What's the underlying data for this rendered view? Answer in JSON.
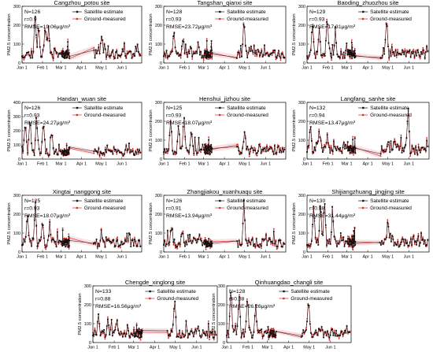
{
  "chart_data": [
    {
      "type": "line",
      "title": "Cangzhou_potou site",
      "ylabel": "PM2.5 concentration",
      "stats": [
        "N=126",
        "r=0.9",
        "RMSE=19.06μg/m³"
      ],
      "legend": [
        "Satellite estimate",
        "Ground-measured"
      ],
      "xticks": [
        "Jan 1",
        "Feb 1",
        "Mar 1",
        "Apr 1",
        "May 1",
        "Jun 1"
      ],
      "ylim": [
        0,
        300
      ],
      "yticks": [
        0,
        100,
        200,
        300
      ],
      "xlim_days": [
        0,
        181
      ],
      "n_points": 126,
      "seed": 11,
      "peaks": [
        [
          20,
          240
        ],
        [
          25,
          210
        ],
        [
          35,
          200
        ],
        [
          40,
          195
        ],
        [
          120,
          140
        ]
      ]
    },
    {
      "type": "line",
      "title": "Tangshan_qianxi site",
      "ylabel": "PM2.5 concentration",
      "stats": [
        "N=128",
        "r=0.93",
        "RMSE=23.72μg/m³"
      ],
      "legend": [
        "Satellite estimate",
        "Ground-measured"
      ],
      "xticks": [
        "Jan 1",
        "Feb 1",
        "Mar 1",
        "Apr 1",
        "May 1",
        "Jun 1"
      ],
      "ylim": [
        0,
        300
      ],
      "yticks": [
        0,
        100,
        200,
        300
      ],
      "xlim_days": [
        0,
        181
      ],
      "n_points": 128,
      "seed": 23,
      "peaks": [
        [
          15,
          180
        ],
        [
          28,
          120
        ],
        [
          40,
          90
        ],
        [
          119,
          230
        ],
        [
          140,
          80
        ]
      ]
    },
    {
      "type": "line",
      "title": "Baoding_zhuozhou site",
      "ylabel": "PM2.5 concentration",
      "stats": [
        "N=129",
        "r=0.93",
        "RMSE=17.31μg/m³"
      ],
      "legend": [
        "Satellite estimate",
        "Ground-measured"
      ],
      "xticks": [
        "Jan 1",
        "Feb 1",
        "Mar 1",
        "Apr 1",
        "May 1",
        "Jun 1"
      ],
      "ylim": [
        0,
        300
      ],
      "yticks": [
        0,
        100,
        200,
        300
      ],
      "xlim_days": [
        0,
        181
      ],
      "n_points": 129,
      "seed": 37,
      "peaks": [
        [
          8,
          210
        ],
        [
          18,
          180
        ],
        [
          30,
          250
        ],
        [
          42,
          150
        ],
        [
          118,
          240
        ]
      ]
    },
    {
      "type": "line",
      "title": "Handan_wuan site",
      "ylabel": "PM2.5 concentration",
      "stats": [
        "N=126",
        "r=0.93",
        "RMSE=24.27μg/m³"
      ],
      "legend": [
        "Satellite estimate",
        "Ground-measured"
      ],
      "xticks": [
        "Jan 1",
        "Feb 1",
        "Mar 1",
        "Apr 1",
        "May 1",
        "Jun 1"
      ],
      "ylim": [
        0,
        400
      ],
      "yticks": [
        0,
        100,
        200,
        300,
        400
      ],
      "xlim_days": [
        0,
        181
      ],
      "n_points": 126,
      "seed": 41,
      "peaks": [
        [
          5,
          260
        ],
        [
          12,
          300
        ],
        [
          22,
          280
        ],
        [
          32,
          250
        ],
        [
          45,
          200
        ]
      ]
    },
    {
      "type": "line",
      "title": "Henshui_jizhou site",
      "ylabel": "PM2.5 concentration",
      "stats": [
        "N=125",
        "r=0.93",
        "RMSE=18.07μg/m³"
      ],
      "legend": [
        "Satellite estimate",
        "Ground-measured"
      ],
      "xticks": [
        "Jan 1",
        "Feb 1",
        "Mar 1",
        "Apr 1",
        "May 1",
        "Jun 1"
      ],
      "ylim": [
        0,
        300
      ],
      "yticks": [
        0,
        100,
        200,
        300
      ],
      "xlim_days": [
        0,
        181
      ],
      "n_points": 125,
      "seed": 53,
      "peaks": [
        [
          10,
          200
        ],
        [
          22,
          180
        ],
        [
          30,
          230
        ],
        [
          41,
          160
        ],
        [
          120,
          150
        ]
      ]
    },
    {
      "type": "line",
      "title": "Langfang_sanhe site",
      "ylabel": "PM2.5 concentration",
      "stats": [
        "N=132",
        "r=0.94",
        "RMSE=13.47μg/m³"
      ],
      "legend": [
        "Satellite estimate",
        "Ground-measured"
      ],
      "xticks": [
        "Jan 1",
        "Feb 1",
        "Mar 1",
        "Apr 1",
        "May 1",
        "Jun 1"
      ],
      "ylim": [
        0,
        300
      ],
      "yticks": [
        0,
        100,
        200,
        300
      ],
      "xlim_days": [
        0,
        181
      ],
      "n_points": 132,
      "seed": 61,
      "peaks": [
        [
          5,
          180
        ],
        [
          18,
          150
        ],
        [
          30,
          130
        ],
        [
          120,
          90
        ],
        [
          150,
          280
        ]
      ]
    },
    {
      "type": "line",
      "title": "Xingtai_nanggong site",
      "ylabel": "PM2.5 concentration",
      "stats": [
        "N=125",
        "r=0.93",
        "RMSE=18.07μg/m³"
      ],
      "legend": [
        "Satellite estimate",
        "Ground-measured"
      ],
      "xticks": [
        "Jan 1",
        "Feb 1",
        "Mar 1",
        "Apr 1",
        "May 1",
        "Jun 1"
      ],
      "ylim": [
        0,
        300
      ],
      "yticks": [
        0,
        100,
        200,
        300
      ],
      "xlim_days": [
        0,
        181
      ],
      "n_points": 125,
      "seed": 71,
      "peaks": [
        [
          8,
          200
        ],
        [
          20,
          250
        ],
        [
          31,
          180
        ],
        [
          42,
          140
        ],
        [
          120,
          110
        ]
      ]
    },
    {
      "type": "line",
      "title": "Zhangjiakou_xuanhuaqu site",
      "ylabel": "PM2.5 concentration",
      "stats": [
        "N=126",
        "r=0.91",
        "RMSE=13.94μg/m³"
      ],
      "legend": [
        "Satellite estimate",
        "Ground-measured"
      ],
      "xticks": [
        "Jan 1",
        "Feb 1",
        "Mar 1",
        "Apr 1",
        "May 1",
        "Jun 1"
      ],
      "ylim": [
        0,
        300
      ],
      "yticks": [
        0,
        100,
        200,
        300
      ],
      "xlim_days": [
        0,
        181
      ],
      "n_points": 126,
      "seed": 83,
      "peaks": [
        [
          12,
          130
        ],
        [
          28,
          110
        ],
        [
          45,
          90
        ],
        [
          119,
          260
        ],
        [
          150,
          70
        ]
      ]
    },
    {
      "type": "line",
      "title": "Shijiangzhuang_jingjing site",
      "ylabel": "PM2.5 concentration",
      "stats": [
        "N=130",
        "r=0.88",
        "RMSE=31.44μg/m³"
      ],
      "legend": [
        "Satellite estimate",
        "Ground-measured"
      ],
      "xticks": [
        "Jan 1",
        "Feb 1",
        "Mar 1",
        "Apr 1",
        "May 1",
        "Jun 1"
      ],
      "ylim": [
        0,
        300
      ],
      "yticks": [
        0,
        100,
        200,
        300
      ],
      "xlim_days": [
        0,
        181
      ],
      "n_points": 130,
      "seed": 97,
      "peaks": [
        [
          10,
          260
        ],
        [
          20,
          230
        ],
        [
          26,
          280
        ],
        [
          38,
          200
        ],
        [
          120,
          160
        ]
      ]
    },
    {
      "type": "line",
      "title": "Chengde_xinglong site",
      "ylabel": "PM2.5 concentration",
      "stats": [
        "N=133",
        "r=0.88",
        "RMSE=16.56μg/m³"
      ],
      "legend": [
        "Satellite estimate",
        "Ground-measured"
      ],
      "xticks": [
        "Jan 1",
        "Feb 1",
        "Mar 1",
        "Apr 1",
        "May 1",
        "Jun 1"
      ],
      "ylim": [
        0,
        300
      ],
      "yticks": [
        0,
        100,
        200,
        300
      ],
      "xlim_days": [
        0,
        181
      ],
      "n_points": 133,
      "seed": 101,
      "peaks": [
        [
          8,
          150
        ],
        [
          22,
          120
        ],
        [
          35,
          110
        ],
        [
          119,
          240
        ],
        [
          150,
          70
        ]
      ]
    },
    {
      "type": "line",
      "title": "Qinhuangdao_changli site",
      "ylabel": "PM2.5 concentration",
      "stats": [
        "N=128",
        "r=0.88",
        "RMSE=26.26μg/m³"
      ],
      "legend": [
        "Satellite estimate",
        "Ground-measured"
      ],
      "xticks": [
        "Jan 1",
        "Feb 1",
        "Mar 1",
        "Apr 1",
        "May 1",
        "Jun 1"
      ],
      "ylim": [
        0,
        300
      ],
      "yticks": [
        0,
        100,
        200,
        300
      ],
      "xlim_days": [
        0,
        181
      ],
      "n_points": 128,
      "seed": 113,
      "peaks": [
        [
          6,
          280
        ],
        [
          18,
          250
        ],
        [
          30,
          230
        ],
        [
          42,
          200
        ],
        [
          119,
          240
        ]
      ]
    }
  ],
  "colors": {
    "satellite": "#111111",
    "ground": "#d62828",
    "band": "#f4c6cc"
  }
}
